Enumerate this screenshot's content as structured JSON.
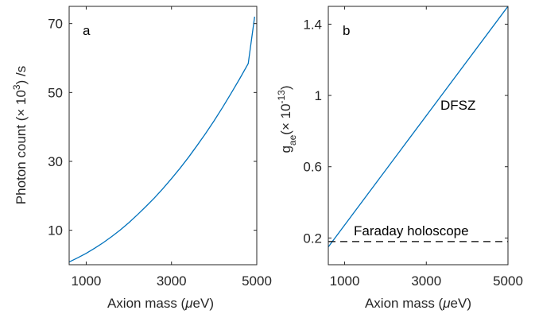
{
  "chart_data": [
    {
      "type": "line",
      "panel_label": "a",
      "xlabel_text": "Axion mass (",
      "xlabel_mu": "μ",
      "xlabel_unit": "eV)",
      "ylabel_text": "Photon count (× 10",
      "ylabel_exp": "3",
      "ylabel_unit": ") /s",
      "xlim": [
        600,
        5000
      ],
      "ylim": [
        0,
        75
      ],
      "xticks": [
        1000,
        3000,
        5000
      ],
      "xtick_labels": [
        "1000",
        "3000",
        "5000"
      ],
      "yticks": [
        10,
        30,
        50,
        70
      ],
      "ytick_labels": [
        "10",
        "30",
        "50",
        "70"
      ],
      "grid": false,
      "series": [
        {
          "color": "#0072BD",
          "x": [
            600,
            800,
            1000,
            1200,
            1400,
            1600,
            1800,
            2000,
            2200,
            2400,
            2600,
            2800,
            3000,
            3200,
            3400,
            3600,
            3800,
            4000,
            4200,
            4400,
            4600,
            4800,
            4950
          ],
          "y": [
            0.8,
            2.0,
            3.3,
            4.8,
            6.4,
            8.2,
            10.1,
            12.2,
            14.5,
            16.9,
            19.4,
            22.1,
            25.0,
            28.0,
            31.2,
            34.6,
            38.1,
            41.8,
            45.7,
            49.8,
            54.0,
            58.4,
            72.0
          ]
        }
      ]
    },
    {
      "type": "line",
      "panel_label": "b",
      "xlabel_text": "Axion mass (",
      "xlabel_mu": "μ",
      "xlabel_unit": "eV)",
      "ylabel_g": "g",
      "ylabel_sub": "ae",
      "ylabel_text": "(× 10",
      "ylabel_exp": "-13",
      "ylabel_unit": ")",
      "xlim": [
        600,
        5000
      ],
      "ylim": [
        0.05,
        1.5
      ],
      "xticks": [
        1000,
        3000,
        5000
      ],
      "xtick_labels": [
        "1000",
        "3000",
        "5000"
      ],
      "yticks": [
        0.2,
        0.6,
        1.0,
        1.4
      ],
      "ytick_labels": [
        "0.2",
        "0.6",
        "1",
        "1.4"
      ],
      "grid": false,
      "series": [
        {
          "label": "DFSZ",
          "color": "#0072BD",
          "style": "solid",
          "x": [
            600,
            5000
          ],
          "y": [
            0.15,
            1.5
          ]
        },
        {
          "label": "Faraday holoscope",
          "color": "#000000",
          "style": "dashed",
          "x": [
            600,
            5000
          ],
          "y": [
            0.18,
            0.18
          ]
        }
      ]
    }
  ]
}
